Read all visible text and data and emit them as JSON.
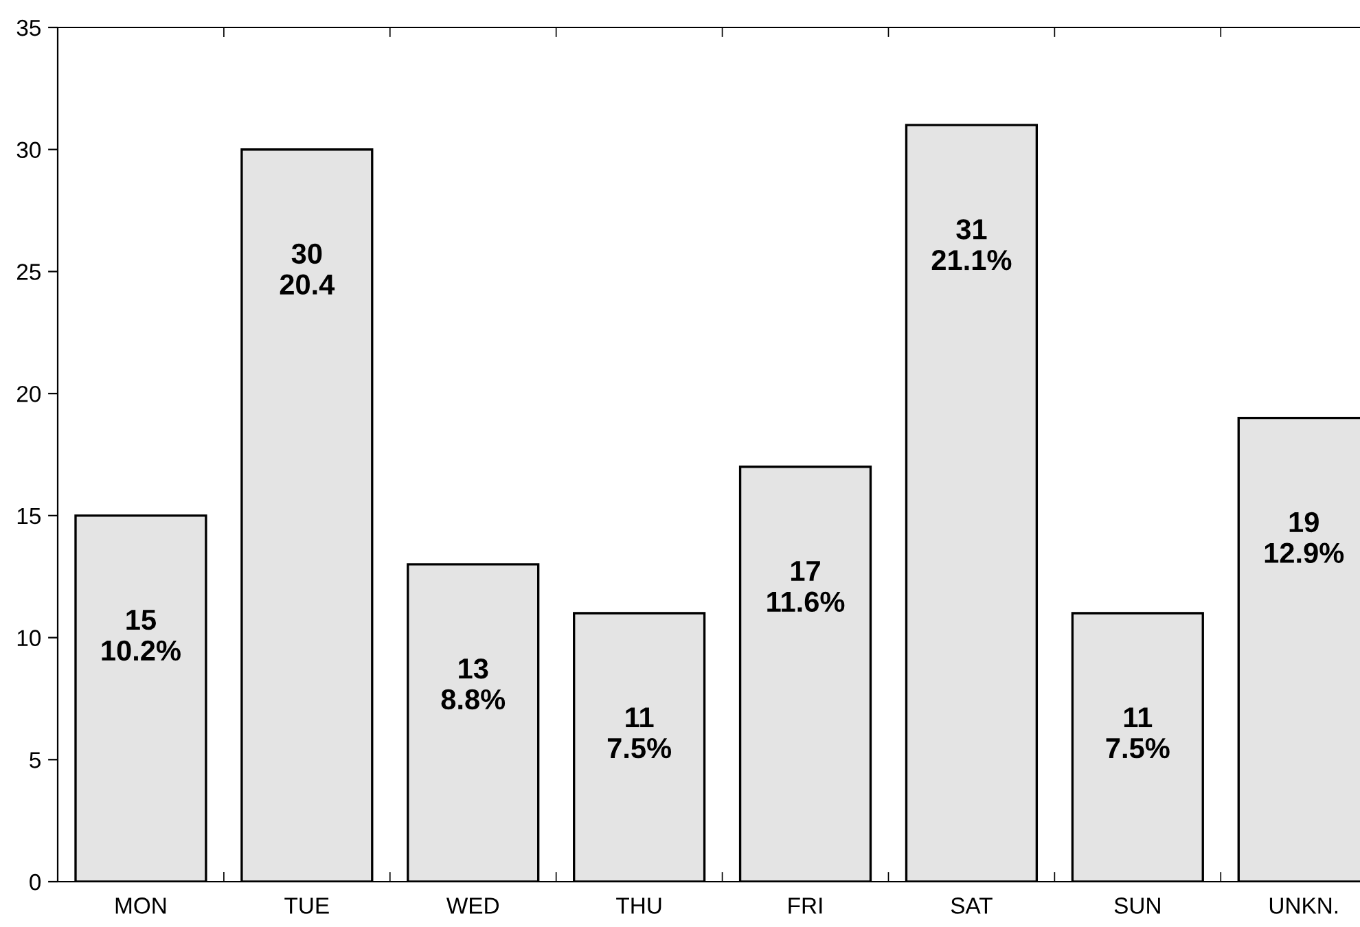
{
  "chart_data": {
    "type": "bar",
    "categories": [
      "MON",
      "TUE",
      "WED",
      "THU",
      "FRI",
      "SAT",
      "SUN",
      "UNKN."
    ],
    "values": [
      15,
      30,
      13,
      11,
      17,
      31,
      11,
      19
    ],
    "value_labels": [
      "15\n10.2%",
      "30\n20.4",
      "13\n8.8%",
      "11\n7.5%",
      "17\n11.6%",
      "31\n21.1%",
      "11\n7.5%",
      "19\n12.9%"
    ],
    "color": "#e4e4e4",
    "ylim": [
      0,
      35
    ],
    "yticks": [
      0,
      5,
      10,
      15,
      20,
      25,
      30,
      35
    ],
    "grid": false
  }
}
